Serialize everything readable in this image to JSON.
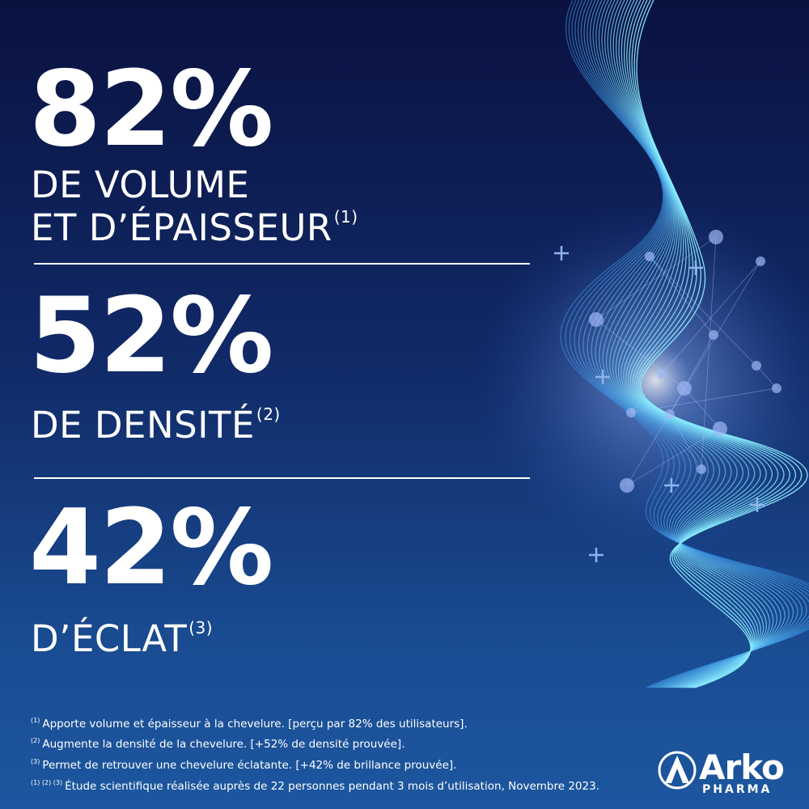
{
  "stats": [
    {
      "value": "82%",
      "label": [
        "DE VOLUME",
        "ET D’ÉPAISSEUR"
      ],
      "note": "(1)"
    },
    {
      "value": "52%",
      "label": [
        "DE DENSITÉ"
      ],
      "note": "(2)"
    },
    {
      "value": "42%",
      "label": [
        "D’ÉCLAT"
      ],
      "note": "(3)"
    }
  ],
  "footnotes": [
    {
      "marker": "(1)",
      "text": "Apporte volume et épaisseur à la chevelure. [perçu par 82% des utilisateurs]."
    },
    {
      "marker": "(2)",
      "text": "Augmente la densité de la chevelure. [+52% de densité prouvée]."
    },
    {
      "marker": "(3)",
      "text": "Permet de retrouver une chevelure éclatante. [+42% de brillance prouvée]."
    },
    {
      "marker": "(1) (2) (3)",
      "text": "Étude scientifique réalisée auprès de 22 personnes pendant 3 mois d’utilisation, Novembre 2023."
    }
  ],
  "logo": {
    "name": "Arko",
    "sub": "PHARMA"
  }
}
